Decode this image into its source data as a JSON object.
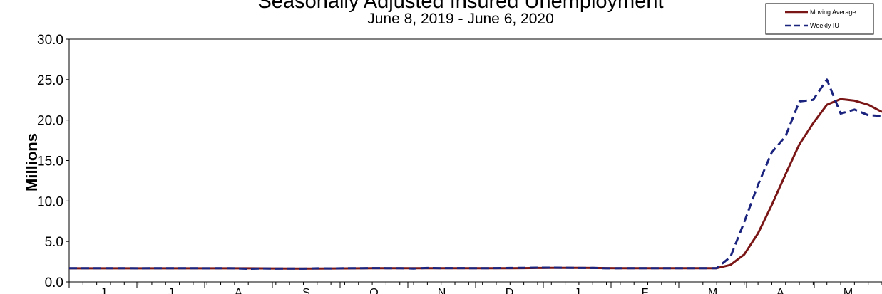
{
  "chart_data": {
    "type": "line",
    "title": "Seasonally Adjusted Insured Unemployment",
    "subtitle": "June 8, 2019 - June 6, 2020",
    "ylabel": "Millions",
    "xlabel": "",
    "ylim": [
      0,
      30
    ],
    "yticks": [
      "0.0",
      "5.0",
      "10.0",
      "15.0",
      "20.0",
      "25.0",
      "30.0"
    ],
    "month_labels": [
      "J",
      "J",
      "A",
      "S",
      "O",
      "N",
      "D",
      "J",
      "F",
      "M",
      "A",
      "M"
    ],
    "grid": false,
    "legend_position": "top-right",
    "colors": {
      "moving_average": "#7a1616",
      "weekly": "#1a237e"
    },
    "series": [
      {
        "name": "Moving Average",
        "style": "solid",
        "values": [
          1.68,
          1.68,
          1.68,
          1.68,
          1.68,
          1.68,
          1.68,
          1.68,
          1.68,
          1.68,
          1.68,
          1.68,
          1.68,
          1.68,
          1.67,
          1.66,
          1.65,
          1.65,
          1.65,
          1.66,
          1.67,
          1.68,
          1.69,
          1.69,
          1.69,
          1.69,
          1.69,
          1.69,
          1.69,
          1.69,
          1.69,
          1.7,
          1.7,
          1.71,
          1.72,
          1.73,
          1.74,
          1.73,
          1.72,
          1.71,
          1.7,
          1.7,
          1.7,
          1.7,
          1.7,
          1.7,
          1.7,
          1.7,
          2.1,
          3.4,
          6.0,
          9.5,
          13.3,
          17.0,
          19.6,
          21.9,
          22.6,
          22.4,
          21.9,
          21.0
        ]
      },
      {
        "name": "Weekly IU",
        "style": "dashed",
        "values": [
          1.7,
          1.69,
          1.7,
          1.69,
          1.7,
          1.68,
          1.7,
          1.69,
          1.7,
          1.7,
          1.68,
          1.7,
          1.68,
          1.62,
          1.66,
          1.64,
          1.65,
          1.64,
          1.68,
          1.66,
          1.7,
          1.69,
          1.71,
          1.7,
          1.7,
          1.65,
          1.72,
          1.7,
          1.71,
          1.7,
          1.69,
          1.71,
          1.72,
          1.74,
          1.76,
          1.76,
          1.75,
          1.72,
          1.73,
          1.68,
          1.69,
          1.7,
          1.7,
          1.7,
          1.7,
          1.7,
          1.7,
          1.7,
          3.1,
          7.4,
          12.0,
          16.0,
          18.0,
          22.3,
          22.5,
          25.0,
          20.8,
          21.3,
          20.6,
          20.5
        ]
      }
    ]
  }
}
